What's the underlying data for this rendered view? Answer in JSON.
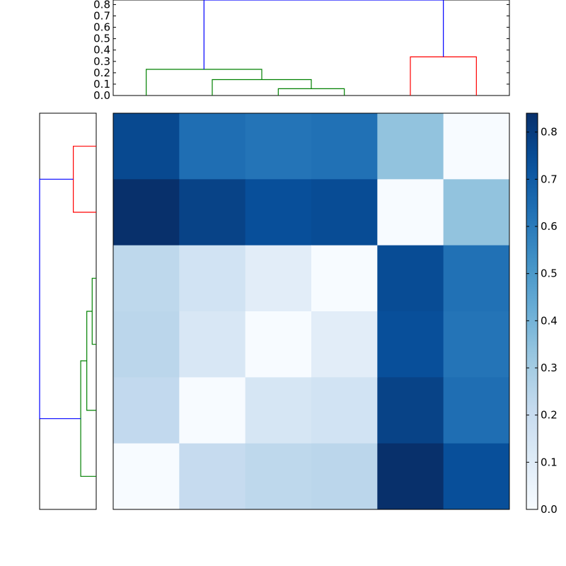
{
  "chart_data": {
    "type": "heatmap",
    "title": "",
    "colormap": "Blues",
    "matrix": [
      [
        0.76,
        0.64,
        0.62,
        0.63,
        0.34,
        0.0
      ],
      [
        0.84,
        0.78,
        0.74,
        0.75,
        0.0,
        0.34
      ],
      [
        0.23,
        0.16,
        0.09,
        0.0,
        0.75,
        0.63
      ],
      [
        0.24,
        0.13,
        0.0,
        0.09,
        0.74,
        0.62
      ],
      [
        0.22,
        0.0,
        0.14,
        0.16,
        0.78,
        0.64
      ],
      [
        0.0,
        0.21,
        0.23,
        0.24,
        0.84,
        0.74
      ]
    ],
    "colorbar": {
      "vmin": 0.0,
      "vmax": 0.84,
      "ticks": [
        "0.0",
        "0.1",
        "0.2",
        "0.3",
        "0.4",
        "0.5",
        "0.6",
        "0.7",
        "0.8"
      ],
      "tick_values": [
        0.0,
        0.1,
        0.2,
        0.3,
        0.4,
        0.5,
        0.6,
        0.7,
        0.8
      ]
    },
    "top_dendrogram": {
      "ylim": [
        0,
        0.84
      ],
      "yticks": [
        "0.0",
        "0.1",
        "0.2",
        "0.3",
        "0.4",
        "0.5",
        "0.6",
        "0.7",
        "0.8"
      ],
      "ytick_values": [
        0.0,
        0.1,
        0.2,
        0.3,
        0.4,
        0.5,
        0.6,
        0.7,
        0.8
      ],
      "links": [
        {
          "left": 2,
          "right": 3,
          "left_h": 0.0,
          "right_h": 0.0,
          "h": 0.06,
          "color": "#008000"
        },
        {
          "left": 1,
          "right": 2.5,
          "left_h": 0.0,
          "right_h": 0.06,
          "h": 0.14,
          "color": "#008000"
        },
        {
          "left": 0,
          "right": 1.75,
          "left_h": 0.0,
          "right_h": 0.14,
          "h": 0.23,
          "color": "#008000"
        },
        {
          "left": 4,
          "right": 5,
          "left_h": 0.0,
          "right_h": 0.0,
          "h": 0.34,
          "color": "#ff0000"
        },
        {
          "left": 0.875,
          "right": 4.5,
          "left_h": 0.23,
          "right_h": 0.34,
          "h": 0.84,
          "color": "#0000ff"
        }
      ]
    },
    "left_dendrogram": {
      "xlim": [
        0,
        0.84
      ],
      "links": [
        {
          "top": 0,
          "bottom": 1,
          "top_h": 0.0,
          "bottom_h": 0.0,
          "h": 0.34,
          "color": "#ff0000"
        },
        {
          "top": 2,
          "bottom": 3,
          "top_h": 0.0,
          "bottom_h": 0.0,
          "h": 0.06,
          "color": "#008000"
        },
        {
          "top": 2.5,
          "bottom": 4,
          "top_h": 0.06,
          "bottom_h": 0.0,
          "h": 0.14,
          "color": "#008000"
        },
        {
          "top": 3.25,
          "bottom": 5,
          "top_h": 0.14,
          "bottom_h": 0.0,
          "h": 0.23,
          "color": "#008000"
        },
        {
          "top": 0.5,
          "bottom": 4.125,
          "top_h": 0.34,
          "bottom_h": 0.23,
          "h": 0.84,
          "color": "#0000ff"
        }
      ]
    }
  }
}
